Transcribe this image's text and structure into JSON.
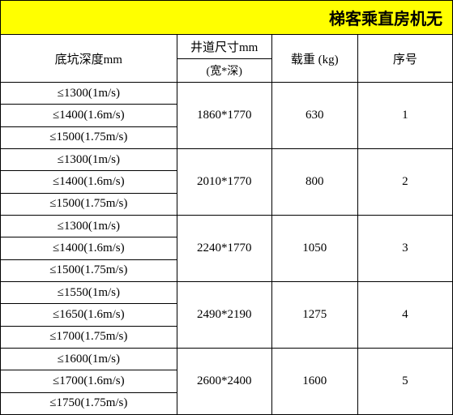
{
  "title": "梯客乘直房机无",
  "headers": {
    "depth": "底坑深度mm",
    "shaft_top": "井道尺寸mm",
    "shaft_sub": "(宽*深)",
    "weight": "载重 (kg)",
    "seq": "序号"
  },
  "rows": [
    {
      "seq": "1",
      "weight": "630",
      "shaft": "1860*1770",
      "depths": [
        "≤1300(1m/s)",
        "≤1400(1.6m/s)",
        "≤1500(1.75m/s)"
      ]
    },
    {
      "seq": "2",
      "weight": "800",
      "shaft": "2010*1770",
      "depths": [
        "≤1300(1m/s)",
        "≤1400(1.6m/s)",
        "≤1500(1.75m/s)"
      ]
    },
    {
      "seq": "3",
      "weight": "1050",
      "shaft": "2240*1770",
      "depths": [
        "≤1300(1m/s)",
        "≤1400(1.6m/s)",
        "≤1500(1.75m/s)"
      ]
    },
    {
      "seq": "4",
      "weight": "1275",
      "shaft": "2490*2190",
      "depths": [
        "≤1550(1m/s)",
        "≤1650(1.6m/s)",
        "≤1700(1.75m/s)"
      ]
    },
    {
      "seq": "5",
      "weight": "1600",
      "shaft": "2600*2400",
      "depths": [
        "≤1600(1m/s)",
        "≤1700(1.6m/s)",
        "≤1750(1.75m/s)"
      ]
    }
  ],
  "colors": {
    "title_bg": "#ffff00",
    "border": "#000000",
    "text": "#000000",
    "background": "#ffffff"
  },
  "font": {
    "title_size": 20,
    "cell_size": 15,
    "sub_size": 14
  }
}
